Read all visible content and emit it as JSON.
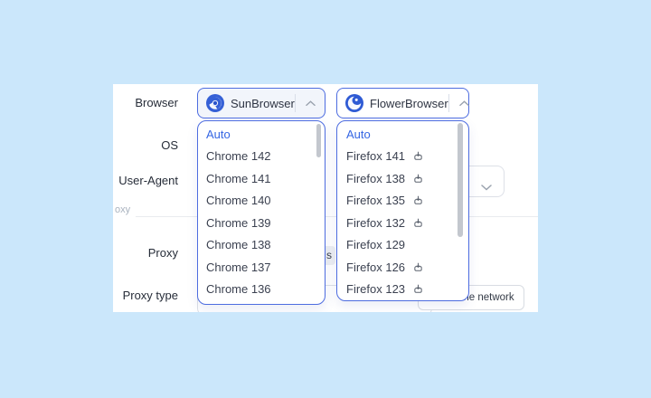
{
  "colors": {
    "background": "#cbe7fb",
    "panel": "#ffffff",
    "accent_border": "#4d6ce0",
    "selected_item": "#3566e3",
    "item_text": "#3b4150",
    "label_text": "#262c38",
    "scrollbar": "#c3c7ce"
  },
  "form": {
    "labels": [
      "Browser",
      "OS",
      "User-Agent",
      "Proxy",
      "Proxy type"
    ],
    "clipped_section_label": "oxy",
    "obscured_button_text": "s",
    "network_button_label": "Check the network"
  },
  "browser_selects": [
    {
      "name": "SunBrowser",
      "icon": "sun-browser-logo",
      "state": "expanded"
    },
    {
      "name": "FlowerBrowser",
      "icon": "flower-browser-logo",
      "state": "expanded"
    }
  ],
  "dropdowns": [
    {
      "id": "sun",
      "items": [
        {
          "label": "Auto",
          "selected": true
        },
        {
          "label": "Chrome 142"
        },
        {
          "label": "Chrome 141"
        },
        {
          "label": "Chrome 140"
        },
        {
          "label": "Chrome 139"
        },
        {
          "label": "Chrome 138"
        },
        {
          "label": "Chrome 137"
        },
        {
          "label": "Chrome 136"
        }
      ]
    },
    {
      "id": "flower",
      "items": [
        {
          "label": "Auto",
          "selected": true
        },
        {
          "label": "Firefox 141",
          "download": true
        },
        {
          "label": "Firefox 138",
          "download": true
        },
        {
          "label": "Firefox 135",
          "download": true
        },
        {
          "label": "Firefox 132",
          "download": true
        },
        {
          "label": "Firefox 129"
        },
        {
          "label": "Firefox 126",
          "download": true
        },
        {
          "label": "Firefox 123",
          "download": true
        }
      ]
    }
  ]
}
